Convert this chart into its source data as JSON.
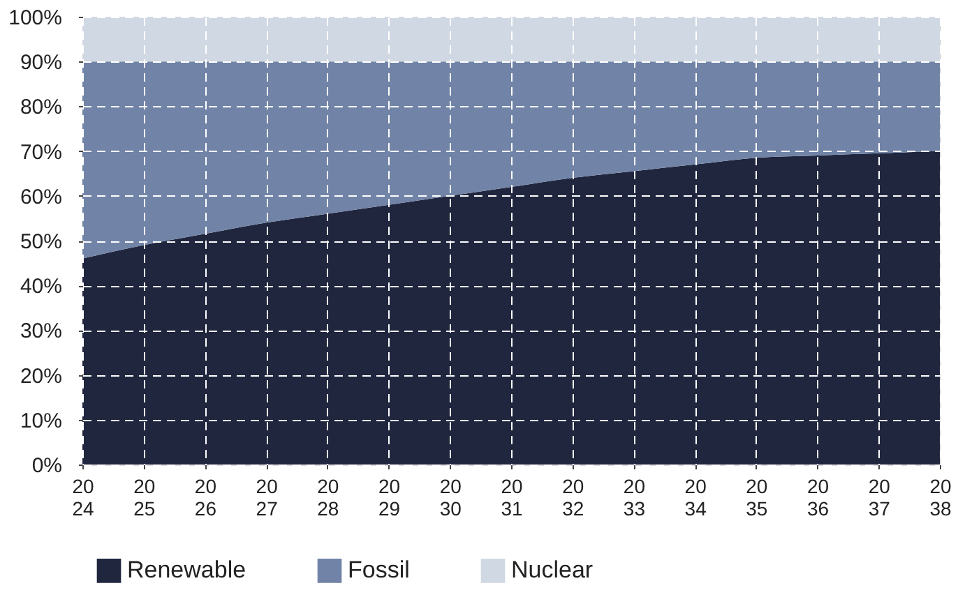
{
  "chart_data": {
    "type": "area",
    "stacked": true,
    "categories": [
      "20\n24",
      "20\n25",
      "20\n26",
      "20\n27",
      "20\n28",
      "20\n29",
      "20\n30",
      "20\n31",
      "20\n32",
      "20\n33",
      "20\n34",
      "20\n35",
      "20\n36",
      "20\n37",
      "20\n38"
    ],
    "series": [
      {
        "name": "Renewable",
        "color": "#20263e",
        "values": [
          46,
          49,
          51.5,
          54,
          56,
          58,
          60,
          62,
          64,
          65.5,
          67,
          68.5,
          69,
          69.5,
          70
        ]
      },
      {
        "name": "Fossil",
        "color": "#7184a7",
        "values": [
          44,
          41,
          38.5,
          36,
          34,
          32,
          30,
          28,
          26,
          24.5,
          23,
          21.5,
          21,
          20.5,
          20
        ]
      },
      {
        "name": "Nuclear",
        "color": "#d0d8e3",
        "values": [
          10,
          10,
          10,
          10,
          10,
          10,
          10,
          10,
          10,
          10,
          10,
          10,
          10,
          10,
          10
        ]
      }
    ],
    "ylim": [
      0,
      100
    ],
    "yticks": [
      {
        "value": 0,
        "label": "0%"
      },
      {
        "value": 10,
        "label": "10%"
      },
      {
        "value": 20,
        "label": "20%"
      },
      {
        "value": 30,
        "label": "30%"
      },
      {
        "value": 40,
        "label": "40%"
      },
      {
        "value": 50,
        "label": "50%"
      },
      {
        "value": 60,
        "label": "60%"
      },
      {
        "value": 70,
        "label": "70%"
      },
      {
        "value": 80,
        "label": "80%"
      },
      {
        "value": 90,
        "label": "90%"
      },
      {
        "value": 100,
        "label": "100%"
      }
    ],
    "grid": true,
    "legend": "bottom left"
  }
}
